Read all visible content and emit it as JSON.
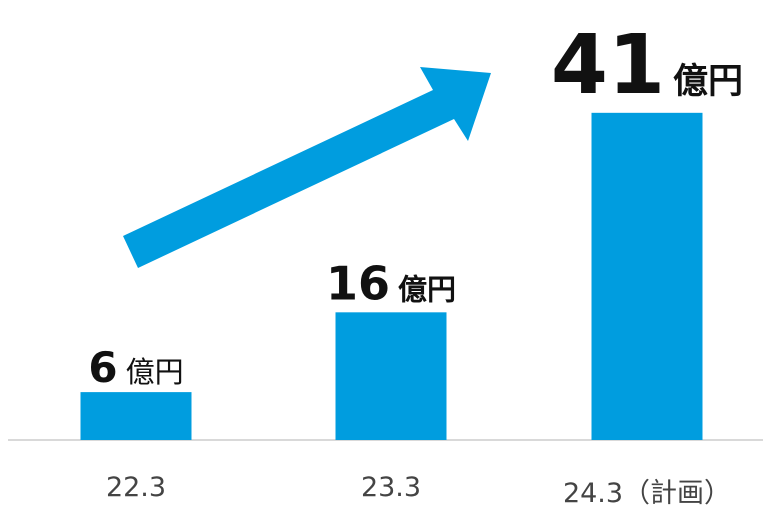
{
  "chart_data": {
    "type": "bar",
    "categories": [
      "22.3",
      "23.3",
      "24.3（計画）"
    ],
    "values": [
      6,
      16,
      41
    ],
    "data_labels": [
      "6",
      "16",
      "41"
    ],
    "unit": "億円",
    "title": "",
    "xlabel": "",
    "ylabel": "",
    "ylim": [
      0,
      50
    ],
    "grid": false,
    "legend": "none",
    "annotations": [
      "growth-arrow"
    ],
    "colors": {
      "bar": "#009ddf",
      "arrow": "#009ddf",
      "baseline": "#d9d9d9",
      "text": "#111111",
      "tick_text": "#444444"
    }
  }
}
